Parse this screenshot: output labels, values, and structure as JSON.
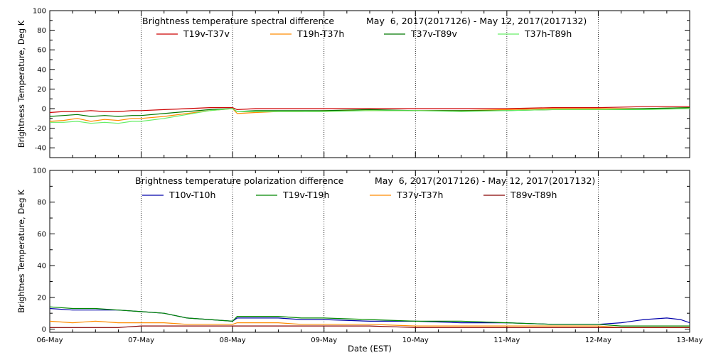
{
  "chart_data": [
    {
      "type": "line",
      "title": "Brightness temperature spectral difference",
      "date_range": "May  6, 2017(2017126) - May 12, 2017(2017132)",
      "ylabel": "Brightness Temperature, Deg K",
      "xlabel": "",
      "ylim": [
        -50,
        100
      ],
      "yticks": [
        "-40",
        "-20",
        "0",
        "20",
        "40",
        "60",
        "80",
        "100"
      ],
      "ytick_values": [
        -40,
        -20,
        0,
        20,
        40,
        60,
        80,
        100
      ],
      "xlim": [
        0,
        7
      ],
      "grid": "vertical dotted at day boundaries",
      "legend": "top",
      "series": [
        {
          "name": "T19v-T37v",
          "color": "#cc0000",
          "x": [
            0,
            0.15,
            0.3,
            0.45,
            0.6,
            0.75,
            0.9,
            1.0,
            1.25,
            1.5,
            1.75,
            2.0,
            2.05,
            2.25,
            2.5,
            2.75,
            3.0,
            3.5,
            4.0,
            4.5,
            5.0,
            5.5,
            6.0,
            6.5,
            7.0
          ],
          "y": [
            -4,
            -3,
            -3,
            -2,
            -3,
            -3,
            -2,
            -2,
            -1,
            0,
            1,
            1,
            -1,
            0,
            0,
            0,
            0,
            0,
            0,
            0,
            0,
            1,
            1,
            2,
            2
          ]
        },
        {
          "name": "T19h-T37h",
          "color": "#ff8c00",
          "x": [
            0,
            0.15,
            0.3,
            0.45,
            0.6,
            0.75,
            0.9,
            1.0,
            1.25,
            1.5,
            1.75,
            2.0,
            2.05,
            2.25,
            2.5,
            2.75,
            3.0,
            3.5,
            4.0,
            4.5,
            5.0,
            5.5,
            6.0,
            6.5,
            7.0
          ],
          "y": [
            -13,
            -12,
            -10,
            -13,
            -11,
            -12,
            -10,
            -10,
            -8,
            -5,
            -2,
            0,
            -5,
            -4,
            -3,
            -3,
            -2,
            -2,
            -2,
            -2,
            -1,
            0,
            0,
            0,
            1
          ]
        },
        {
          "name": "T37v-T89v",
          "color": "#007700",
          "x": [
            0,
            0.15,
            0.3,
            0.45,
            0.6,
            0.75,
            0.9,
            1.0,
            1.25,
            1.5,
            1.75,
            2.0,
            2.05,
            2.25,
            2.5,
            2.75,
            3.0,
            3.5,
            4.0,
            4.5,
            5.0,
            5.5,
            6.0,
            6.5,
            7.0
          ],
          "y": [
            -8,
            -7,
            -6,
            -8,
            -7,
            -8,
            -7,
            -7,
            -5,
            -3,
            -1,
            0,
            -3,
            -2,
            -2,
            -2,
            -2,
            -1,
            -2,
            -2,
            -2,
            -1,
            -1,
            0,
            1
          ]
        },
        {
          "name": "T37h-T89h",
          "color": "#66ee66",
          "x": [
            0,
            0.15,
            0.3,
            0.45,
            0.6,
            0.75,
            0.9,
            1.0,
            1.25,
            1.5,
            1.75,
            2.0,
            2.05,
            2.25,
            2.5,
            2.75,
            3.0,
            3.5,
            4.0,
            4.5,
            5.0,
            5.5,
            6.0,
            6.5,
            7.0
          ],
          "y": [
            -14,
            -14,
            -13,
            -15,
            -14,
            -15,
            -13,
            -13,
            -10,
            -6,
            -2,
            0,
            -3,
            -3,
            -3,
            -3,
            -3,
            -2,
            -2,
            -3,
            -2,
            -1,
            -1,
            -1,
            0
          ]
        }
      ]
    },
    {
      "type": "line",
      "title": "Brightness temperature polarization difference",
      "date_range": "May  6, 2017(2017126) - May 12, 2017(2017132)",
      "ylabel": "Brightnes Temperature, Deg K",
      "xlabel": "Date (EST)",
      "ylim": [
        -2,
        100
      ],
      "yticks": [
        "0",
        "20",
        "40",
        "60",
        "80",
        "100"
      ],
      "ytick_values": [
        0,
        20,
        40,
        60,
        80,
        100
      ],
      "xlim": [
        0,
        7
      ],
      "xticks": [
        "06-May",
        "07-May",
        "08-May",
        "09-May",
        "10-May",
        "11-May",
        "12-May",
        "13-May"
      ],
      "grid": "vertical dotted at day boundaries",
      "legend": "top",
      "series": [
        {
          "name": "T10v-T10h",
          "color": "#0000aa",
          "x": [
            0,
            0.25,
            0.5,
            0.75,
            1.0,
            1.25,
            1.5,
            1.75,
            2.0,
            2.05,
            2.25,
            2.5,
            2.75,
            3.0,
            3.5,
            4.0,
            4.5,
            5.0,
            5.5,
            6.0,
            6.25,
            6.5,
            6.75,
            6.9,
            7.0
          ],
          "y": [
            13,
            12,
            12,
            12,
            11,
            10,
            7,
            6,
            5,
            7,
            7,
            7,
            6,
            6,
            5,
            5,
            4,
            4,
            3,
            3,
            4,
            6,
            7,
            6,
            4
          ]
        },
        {
          "name": "T19v-T19h",
          "color": "#008800",
          "x": [
            0,
            0.25,
            0.5,
            0.75,
            1.0,
            1.25,
            1.5,
            1.75,
            2.0,
            2.05,
            2.25,
            2.5,
            2.75,
            3.0,
            3.5,
            4.0,
            4.5,
            5.0,
            5.5,
            6.0,
            6.25,
            6.5,
            6.75,
            6.9,
            7.0
          ],
          "y": [
            14,
            13,
            13,
            12,
            11,
            10,
            7,
            6,
            5,
            8,
            8,
            8,
            7,
            7,
            6,
            5,
            5,
            4,
            3,
            3,
            2,
            2,
            2,
            2,
            2
          ]
        },
        {
          "name": "T37v-T37h",
          "color": "#ff8c00",
          "x": [
            0,
            0.25,
            0.5,
            0.75,
            1.0,
            1.25,
            1.5,
            1.75,
            2.0,
            2.05,
            2.25,
            2.5,
            2.75,
            3.0,
            3.5,
            4.0,
            4.5,
            5.0,
            5.5,
            6.0,
            6.25,
            6.5,
            6.75,
            6.9,
            7.0
          ],
          "y": [
            5,
            4,
            5,
            4,
            4,
            4,
            3,
            3,
            3,
            4,
            4,
            4,
            3,
            3,
            3,
            2,
            2,
            2,
            2,
            2,
            1,
            1,
            1,
            1,
            1
          ]
        },
        {
          "name": "T89v-T89h",
          "color": "#880000",
          "x": [
            0,
            0.25,
            0.5,
            0.75,
            1.0,
            1.25,
            1.5,
            1.75,
            2.0,
            2.05,
            2.25,
            2.5,
            2.75,
            3.0,
            3.5,
            4.0,
            4.5,
            5.0,
            5.5,
            6.0,
            6.25,
            6.5,
            6.75,
            6.9,
            7.0
          ],
          "y": [
            1,
            1,
            1,
            1,
            2,
            2,
            2,
            2,
            2,
            2,
            2,
            2,
            2,
            2,
            2,
            1,
            1,
            1,
            1,
            1,
            1,
            1,
            1,
            1,
            1
          ]
        }
      ]
    }
  ]
}
